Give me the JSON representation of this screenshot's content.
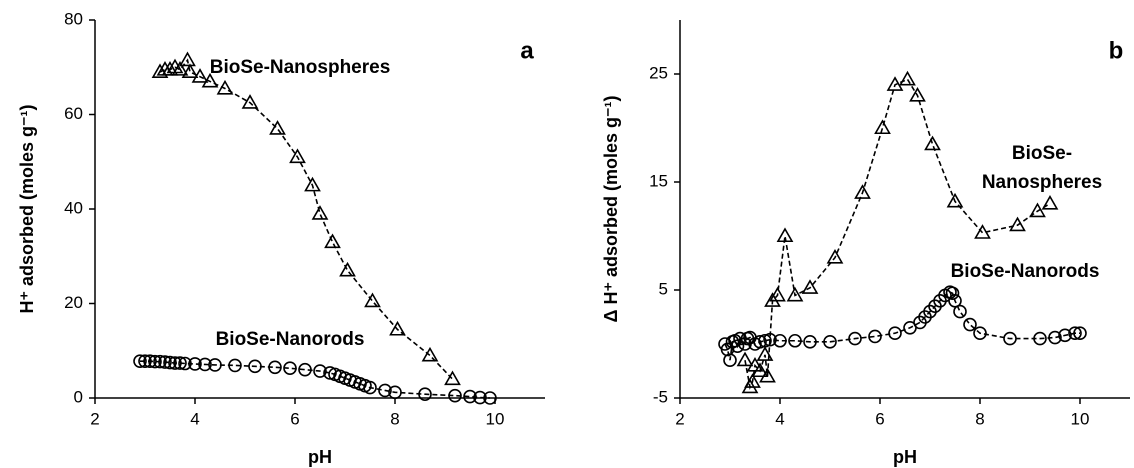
{
  "chart_data": [
    {
      "type": "scatter",
      "panel_label": "a",
      "xlabel": "pH",
      "ylabel": "H⁺ adsorbed (moles g⁻¹)",
      "xlim": [
        2,
        11
      ],
      "xticks": [
        2,
        4,
        6,
        8,
        10
      ],
      "ylim": [
        0,
        80
      ],
      "yticks": [
        0,
        20,
        40,
        60,
        80
      ],
      "annotations": [
        "BioSe-Nanospheres",
        "BioSe-Nanorods"
      ],
      "series": [
        {
          "marker": "triangle",
          "color": "#000000",
          "x": [
            3.3,
            3.4,
            3.5,
            3.6,
            3.7,
            3.85,
            3.9,
            4.1,
            4.3,
            4.6,
            5.1,
            5.65,
            6.05,
            6.35,
            6.5,
            6.75,
            7.05,
            7.55,
            8.05,
            8.7,
            9.15
          ],
          "values": [
            69,
            69.5,
            69.5,
            70,
            69.5,
            71.5,
            69,
            68,
            67,
            65.5,
            62.5,
            57,
            51,
            45,
            39,
            33,
            27,
            20.5,
            14.5,
            9,
            4
          ]
        },
        {
          "marker": "circle",
          "color": "#000000",
          "x": [
            2.9,
            3.0,
            3.1,
            3.2,
            3.3,
            3.4,
            3.5,
            3.6,
            3.7,
            3.8,
            4.0,
            4.2,
            4.4,
            4.8,
            5.2,
            5.6,
            5.9,
            6.2,
            6.5,
            6.7,
            6.8,
            6.9,
            7.0,
            7.1,
            7.2,
            7.3,
            7.4,
            7.5,
            7.8,
            8.0,
            8.6,
            9.2,
            9.5,
            9.7,
            9.9
          ],
          "values": [
            7.8,
            7.8,
            7.8,
            7.7,
            7.7,
            7.6,
            7.5,
            7.4,
            7.4,
            7.3,
            7.2,
            7.1,
            7.0,
            6.9,
            6.7,
            6.5,
            6.3,
            6.0,
            5.7,
            5.3,
            5.0,
            4.6,
            4.2,
            3.8,
            3.4,
            3.0,
            2.6,
            2.2,
            1.6,
            1.2,
            0.8,
            0.5,
            0.3,
            0.1,
            0.0
          ]
        }
      ]
    },
    {
      "type": "scatter",
      "panel_label": "b",
      "xlabel": "pH",
      "ylabel": "Δ H⁺ adsorbed (moles g⁻¹)",
      "xlim": [
        2,
        11
      ],
      "xticks": [
        2,
        4,
        6,
        8,
        10
      ],
      "ylim": [
        -5,
        30
      ],
      "yticks": [
        -5,
        5,
        15,
        25
      ],
      "annotations": [
        "BioSe-",
        "Nanospheres",
        "BioSe-Nanorods"
      ],
      "series": [
        {
          "marker": "triangle",
          "color": "#000000",
          "x": [
            3.3,
            3.4,
            3.45,
            3.5,
            3.6,
            3.7,
            3.75,
            3.85,
            3.95,
            4.1,
            4.3,
            4.6,
            5.1,
            5.65,
            6.05,
            6.3,
            6.55,
            6.75,
            7.05,
            7.5,
            8.05,
            8.75,
            9.15,
            9.4
          ],
          "values": [
            -1.5,
            -4,
            -3.5,
            -2,
            -2.5,
            -1,
            -3,
            4,
            4.5,
            10,
            4.5,
            5.2,
            8,
            14,
            20,
            24,
            24.5,
            23,
            18.5,
            13.2,
            10.3,
            11,
            12.3,
            13
          ]
        },
        {
          "marker": "circle",
          "color": "#000000",
          "x": [
            2.9,
            2.95,
            3.0,
            3.05,
            3.1,
            3.15,
            3.2,
            3.3,
            3.35,
            3.4,
            3.5,
            3.6,
            3.7,
            3.8,
            4.0,
            4.3,
            4.6,
            5.0,
            5.5,
            5.9,
            6.3,
            6.6,
            6.8,
            6.9,
            7.0,
            7.1,
            7.2,
            7.3,
            7.4,
            7.45,
            7.5,
            7.6,
            7.8,
            8.0,
            8.6,
            9.2,
            9.5,
            9.7,
            9.9,
            10.0
          ],
          "values": [
            0,
            -0.5,
            -1.5,
            0.2,
            0.3,
            -0.2,
            0.5,
            0,
            0.5,
            0.6,
            0,
            0.2,
            0.3,
            0.4,
            0.3,
            0.3,
            0.2,
            0.2,
            0.5,
            0.7,
            1.0,
            1.5,
            2.0,
            2.5,
            3.0,
            3.5,
            4.0,
            4.5,
            4.8,
            4.7,
            4.0,
            3.0,
            1.8,
            1.0,
            0.5,
            0.5,
            0.6,
            0.8,
            1.0,
            1.0
          ]
        }
      ]
    }
  ]
}
